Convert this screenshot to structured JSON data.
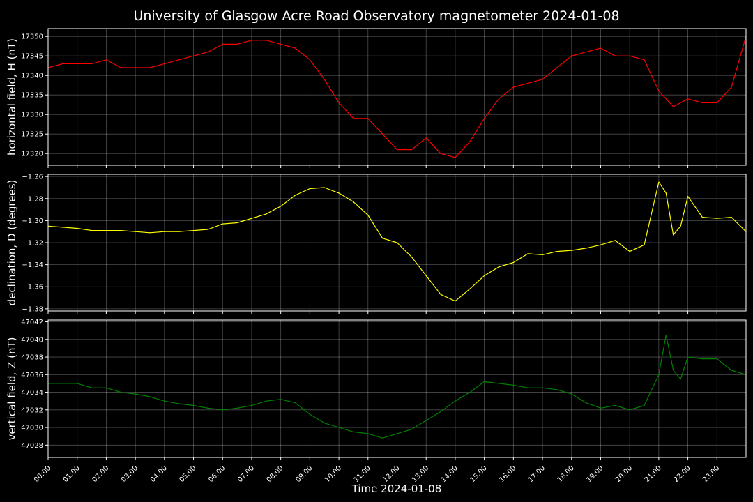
{
  "title": "University of Glasgow Acre Road Observatory magnetometer 2024-01-08",
  "xlabel": "Time 2024-01-08",
  "chart_data": [
    {
      "type": "line",
      "ylabel": "horizontal field, H (nT)",
      "color": "#ff0000",
      "ylim": [
        17317,
        17352
      ],
      "yticks": [
        "17320",
        "17325",
        "17330",
        "17335",
        "17340",
        "17345",
        "17350"
      ],
      "xlim": [
        "00:00",
        "24:00"
      ],
      "grid": true,
      "x": [
        "00:00",
        "00:30",
        "01:00",
        "01:30",
        "02:00",
        "02:30",
        "03:00",
        "03:30",
        "04:00",
        "04:30",
        "05:00",
        "05:30",
        "06:00",
        "06:30",
        "07:00",
        "07:30",
        "08:00",
        "08:30",
        "09:00",
        "09:30",
        "10:00",
        "10:30",
        "11:00",
        "11:30",
        "12:00",
        "12:30",
        "13:00",
        "13:30",
        "14:00",
        "14:30",
        "15:00",
        "15:30",
        "16:00",
        "16:30",
        "17:00",
        "17:30",
        "18:00",
        "18:30",
        "19:00",
        "19:30",
        "20:00",
        "20:30",
        "21:00",
        "21:30",
        "22:00",
        "22:30",
        "23:00",
        "23:30",
        "24:00"
      ],
      "y": [
        17342,
        17343,
        17343,
        17343,
        17344,
        17342,
        17342,
        17342,
        17343,
        17344,
        17345,
        17346,
        17348,
        17348,
        17349,
        17349,
        17348,
        17347,
        17344,
        17339,
        17333,
        17329,
        17329,
        17325,
        17321,
        17321,
        17324,
        17320,
        17319,
        17323,
        17329,
        17334,
        17337,
        17338,
        17339,
        17342,
        17345,
        17346,
        17347,
        17345,
        17345,
        17344,
        17336,
        17332,
        17334,
        17333,
        17333,
        17337,
        17350
      ]
    },
    {
      "type": "line",
      "ylabel": "declination, D (degrees)",
      "color": "#ffff00",
      "ylim": [
        -1.382,
        -1.258
      ],
      "yticks": [
        "−1.38",
        "−1.36",
        "−1.34",
        "−1.32",
        "−1.30",
        "−1.28",
        "−1.26"
      ],
      "xlim": [
        "00:00",
        "24:00"
      ],
      "grid": true,
      "x": [
        "00:00",
        "00:30",
        "01:00",
        "01:30",
        "02:00",
        "02:30",
        "03:00",
        "03:30",
        "04:00",
        "04:30",
        "05:00",
        "05:30",
        "06:00",
        "06:30",
        "07:00",
        "07:30",
        "08:00",
        "08:30",
        "09:00",
        "09:30",
        "10:00",
        "10:30",
        "11:00",
        "11:30",
        "12:00",
        "12:30",
        "13:00",
        "13:30",
        "14:00",
        "14:30",
        "15:00",
        "15:30",
        "16:00",
        "16:30",
        "17:00",
        "17:30",
        "18:00",
        "18:30",
        "19:00",
        "19:30",
        "20:00",
        "20:30",
        "21:00",
        "21:15",
        "21:30",
        "21:45",
        "22:00",
        "22:30",
        "23:00",
        "23:30",
        "24:00"
      ],
      "y": [
        -1.305,
        -1.306,
        -1.307,
        -1.309,
        -1.309,
        -1.309,
        -1.31,
        -1.311,
        -1.31,
        -1.31,
        -1.309,
        -1.308,
        -1.303,
        -1.302,
        -1.298,
        -1.294,
        -1.287,
        -1.277,
        -1.271,
        -1.27,
        -1.275,
        -1.283,
        -1.295,
        -1.316,
        -1.32,
        -1.333,
        -1.35,
        -1.367,
        -1.373,
        -1.362,
        -1.35,
        -1.342,
        -1.338,
        -1.33,
        -1.331,
        -1.328,
        -1.327,
        -1.325,
        -1.322,
        -1.318,
        -1.328,
        -1.322,
        -1.265,
        -1.275,
        -1.313,
        -1.305,
        -1.278,
        -1.297,
        -1.298,
        -1.297,
        -1.31
      ]
    },
    {
      "type": "line",
      "ylabel": "vertical field, Z (nT)",
      "color": "#008000",
      "ylim": [
        47026.6,
        47042.2
      ],
      "yticks": [
        "47028",
        "47030",
        "47032",
        "47034",
        "47036",
        "47038",
        "47040",
        "47042"
      ],
      "xlim": [
        "00:00",
        "24:00"
      ],
      "grid": true,
      "x": [
        "00:00",
        "00:30",
        "01:00",
        "01:30",
        "02:00",
        "02:30",
        "03:00",
        "03:30",
        "04:00",
        "04:30",
        "05:00",
        "05:30",
        "06:00",
        "06:30",
        "07:00",
        "07:30",
        "08:00",
        "08:30",
        "09:00",
        "09:30",
        "10:00",
        "10:30",
        "11:00",
        "11:30",
        "12:00",
        "12:30",
        "13:00",
        "13:30",
        "14:00",
        "14:30",
        "15:00",
        "15:30",
        "16:00",
        "16:30",
        "17:00",
        "17:30",
        "18:00",
        "18:30",
        "19:00",
        "19:30",
        "20:00",
        "20:30",
        "21:00",
        "21:15",
        "21:30",
        "21:45",
        "22:00",
        "22:30",
        "23:00",
        "23:30",
        "24:00"
      ],
      "y": [
        47035,
        47035,
        47035,
        47034.5,
        47034.5,
        47034,
        47033.8,
        47033.5,
        47033,
        47032.7,
        47032.5,
        47032.2,
        47032,
        47032.2,
        47032.5,
        47033,
        47033.2,
        47032.8,
        47031.5,
        47030.5,
        47030,
        47029.5,
        47029.3,
        47028.8,
        47029.3,
        47029.8,
        47030.8,
        47031.8,
        47033,
        47034,
        47035.2,
        47035,
        47034.8,
        47034.5,
        47034.5,
        47034.3,
        47033.8,
        47032.8,
        47032.2,
        47032.5,
        47032,
        47032.5,
        47036,
        47040.5,
        47036.5,
        47035.5,
        47038,
        47037.8,
        47037.8,
        47036.5,
        47036
      ]
    }
  ],
  "xticks": [
    "00:00",
    "01:00",
    "02:00",
    "03:00",
    "04:00",
    "05:00",
    "06:00",
    "07:00",
    "08:00",
    "09:00",
    "10:00",
    "11:00",
    "12:00",
    "13:00",
    "14:00",
    "15:00",
    "16:00",
    "17:00",
    "18:00",
    "19:00",
    "20:00",
    "21:00",
    "22:00",
    "23:00"
  ]
}
